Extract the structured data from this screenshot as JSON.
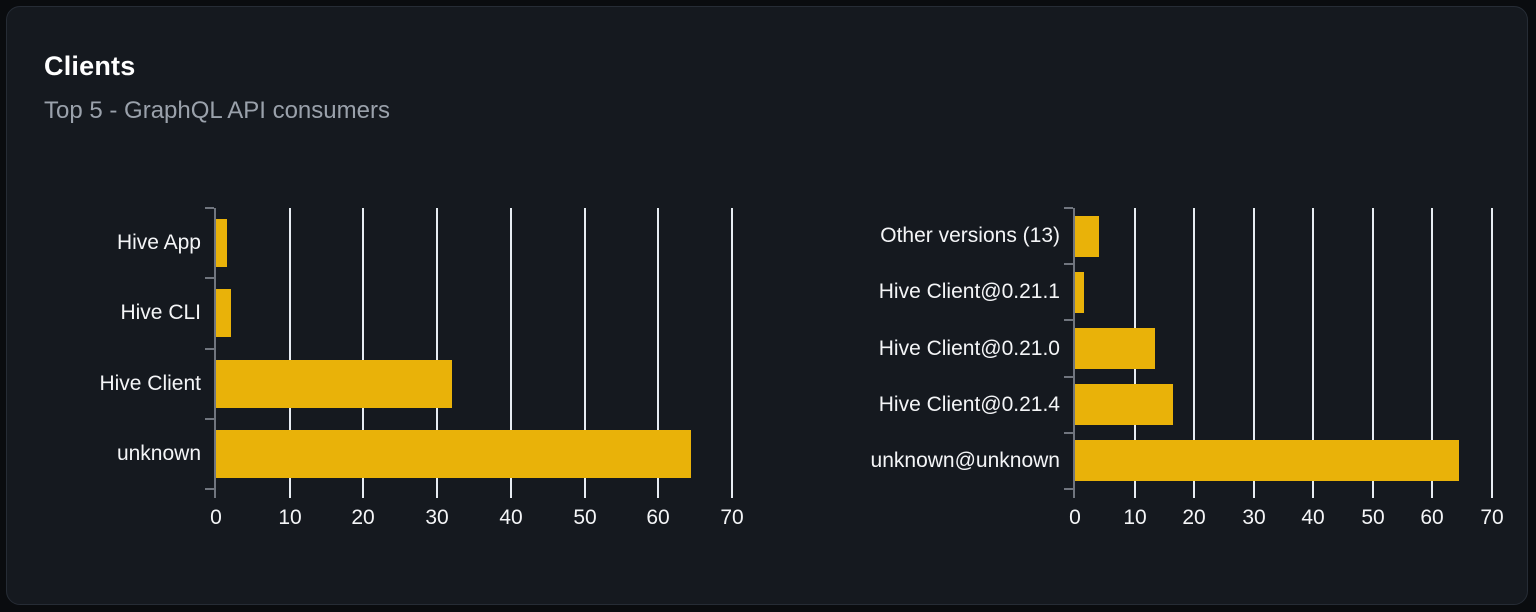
{
  "card": {
    "title": "Clients",
    "subtitle": "Top 5 - GraphQL API consumers"
  },
  "colors": {
    "page_bg": "#0a0c0f",
    "card_bg": "#15191f",
    "card_border": "#262c35",
    "title": "#ffffff",
    "subtitle": "#9aa1ab",
    "bar": "#e9b209",
    "grid_line": "#e7ecf2",
    "axis_line": "#70757e",
    "tick_text": "#f4f5f7"
  },
  "chart_data": [
    {
      "type": "bar",
      "orientation": "horizontal",
      "title": "",
      "xlabel": "",
      "ylabel": "",
      "categories": [
        "Hive App",
        "Hive CLI",
        "Hive Client",
        "unknown"
      ],
      "values": [
        1.5,
        2,
        32,
        64.5
      ],
      "xlim": [
        0,
        70
      ],
      "xticks": [
        0,
        10,
        20,
        30,
        40,
        50,
        60,
        70
      ],
      "grid": true,
      "legend": false,
      "bar_color": "#e9b209"
    },
    {
      "type": "bar",
      "orientation": "horizontal",
      "title": "",
      "xlabel": "",
      "ylabel": "",
      "categories": [
        "Other versions (13)",
        "Hive Client@0.21.1",
        "Hive Client@0.21.0",
        "Hive Client@0.21.4",
        "unknown@unknown"
      ],
      "values": [
        4,
        1.5,
        13.5,
        16.5,
        64.5
      ],
      "xlim": [
        0,
        70
      ],
      "xticks": [
        0,
        10,
        20,
        30,
        40,
        50,
        60,
        70
      ],
      "grid": true,
      "legend": false,
      "bar_color": "#e9b209"
    }
  ]
}
